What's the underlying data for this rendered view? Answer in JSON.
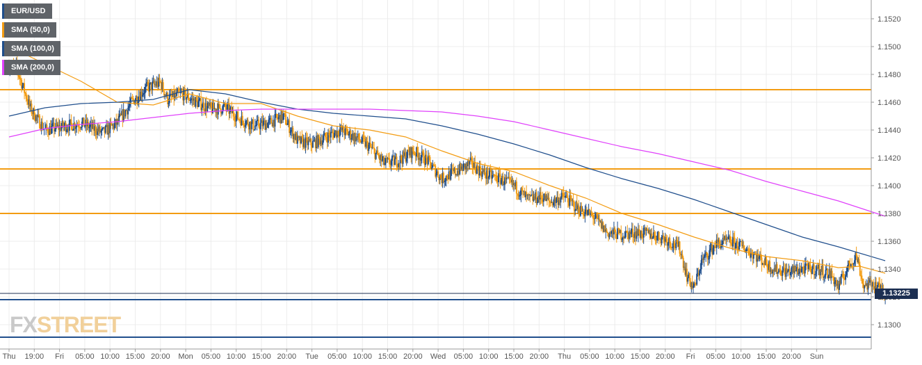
{
  "chart_data": {
    "type": "candlestick",
    "symbol": "EUR/USD",
    "ylim": [
      1.129,
      1.153
    ],
    "y_ticks": [
      "1.1300",
      "1.1320",
      "1.1340",
      "1.1360",
      "1.1380",
      "1.1400",
      "1.1420",
      "1.1440",
      "1.1460",
      "1.1480",
      "1.1500",
      "1.1520"
    ],
    "x_ticks": [
      "Thu",
      "19:00",
      "Fri",
      "05:00",
      "10:00",
      "15:00",
      "20:00",
      "Mon",
      "05:00",
      "10:00",
      "15:00",
      "20:00",
      "Tue",
      "05:00",
      "10:00",
      "15:00",
      "20:00",
      "Wed",
      "05:00",
      "10:00",
      "15:00",
      "20:00",
      "Thu",
      "05:00",
      "10:00",
      "15:00",
      "20:00",
      "Fri",
      "05:00",
      "10:00",
      "15:00",
      "20:00",
      "Sun"
    ],
    "last_price": "1.13225",
    "horizontal_levels": [
      {
        "value": 1.1469,
        "color": "#f39c12"
      },
      {
        "value": 1.1412,
        "color": "#f39c12"
      },
      {
        "value": 1.138,
        "color": "#f39c12"
      },
      {
        "value": 1.1318,
        "color": "#1f4e8c"
      },
      {
        "value": 1.1291,
        "color": "#1f4e8c"
      }
    ],
    "close_path": [
      [
        0,
        1.1486
      ],
      [
        2,
        1.1485
      ],
      [
        6,
        1.1455
      ],
      [
        10,
        1.144
      ],
      [
        16,
        1.1443
      ],
      [
        20,
        1.1445
      ],
      [
        26,
        1.1438
      ],
      [
        30,
        1.1445
      ],
      [
        34,
        1.146
      ],
      [
        38,
        1.147
      ],
      [
        42,
        1.1474
      ],
      [
        44,
        1.1462
      ],
      [
        48,
        1.1466
      ],
      [
        52,
        1.146
      ],
      [
        56,
        1.1455
      ],
      [
        60,
        1.1456
      ],
      [
        64,
        1.1448
      ],
      [
        68,
        1.1443
      ],
      [
        72,
        1.1445
      ],
      [
        76,
        1.145
      ],
      [
        80,
        1.1432
      ],
      [
        84,
        1.143
      ],
      [
        88,
        1.1435
      ],
      [
        92,
        1.144
      ],
      [
        96,
        1.1435
      ],
      [
        100,
        1.1428
      ],
      [
        104,
        1.1416
      ],
      [
        108,
        1.1418
      ],
      [
        112,
        1.1425
      ],
      [
        116,
        1.1418
      ],
      [
        120,
        1.1405
      ],
      [
        124,
        1.141
      ],
      [
        128,
        1.1416
      ],
      [
        132,
        1.1408
      ],
      [
        136,
        1.1405
      ],
      [
        140,
        1.14
      ],
      [
        144,
        1.139
      ],
      [
        148,
        1.1392
      ],
      [
        150,
        1.1388
      ],
      [
        154,
        1.1392
      ],
      [
        158,
        1.1383
      ],
      [
        162,
        1.1378
      ],
      [
        166,
        1.1366
      ],
      [
        170,
        1.1365
      ],
      [
        174,
        1.1366
      ],
      [
        178,
        1.1365
      ],
      [
        182,
        1.1362
      ],
      [
        186,
        1.1355
      ],
      [
        188,
        1.1335
      ],
      [
        190,
        1.1326
      ],
      [
        192,
        1.1345
      ],
      [
        196,
        1.1358
      ],
      [
        200,
        1.136
      ],
      [
        204,
        1.1355
      ],
      [
        208,
        1.1348
      ],
      [
        212,
        1.134
      ],
      [
        216,
        1.1338
      ],
      [
        220,
        1.134
      ],
      [
        224,
        1.134
      ],
      [
        228,
        1.1336
      ],
      [
        230,
        1.1327
      ],
      [
        233,
        1.1343
      ],
      [
        235,
        1.135
      ],
      [
        237,
        1.1328
      ],
      [
        240,
        1.133
      ],
      [
        243,
        1.1322
      ]
    ],
    "series": [
      {
        "name": "SMA (50,0)",
        "color": "#f39c12",
        "points": [
          [
            0,
            1.15
          ],
          [
            20,
            1.1475
          ],
          [
            30,
            1.146
          ],
          [
            40,
            1.1458
          ],
          [
            50,
            1.1466
          ],
          [
            60,
            1.1459
          ],
          [
            70,
            1.1459
          ],
          [
            80,
            1.145
          ],
          [
            90,
            1.1443
          ],
          [
            100,
            1.144
          ],
          [
            110,
            1.1435
          ],
          [
            120,
            1.1425
          ],
          [
            130,
            1.1416
          ],
          [
            140,
            1.141
          ],
          [
            150,
            1.14
          ],
          [
            160,
            1.1391
          ],
          [
            170,
            1.138
          ],
          [
            180,
            1.1372
          ],
          [
            190,
            1.1363
          ],
          [
            200,
            1.1355
          ],
          [
            210,
            1.1349
          ],
          [
            220,
            1.1346
          ],
          [
            230,
            1.1341
          ],
          [
            236,
            1.1342
          ],
          [
            243,
            1.1337
          ]
        ]
      },
      {
        "name": "SMA (100,0)",
        "color": "#1f4e8c",
        "points": [
          [
            0,
            1.145
          ],
          [
            10,
            1.1456
          ],
          [
            20,
            1.1459
          ],
          [
            30,
            1.146
          ],
          [
            40,
            1.1462
          ],
          [
            50,
            1.1469
          ],
          [
            60,
            1.1466
          ],
          [
            70,
            1.146
          ],
          [
            80,
            1.1455
          ],
          [
            90,
            1.1452
          ],
          [
            100,
            1.145
          ],
          [
            110,
            1.1448
          ],
          [
            120,
            1.1443
          ],
          [
            130,
            1.1437
          ],
          [
            140,
            1.143
          ],
          [
            150,
            1.1422
          ],
          [
            160,
            1.1413
          ],
          [
            170,
            1.1405
          ],
          [
            180,
            1.1398
          ],
          [
            190,
            1.139
          ],
          [
            200,
            1.1381
          ],
          [
            210,
            1.1372
          ],
          [
            220,
            1.1363
          ],
          [
            230,
            1.1356
          ],
          [
            243,
            1.1346
          ]
        ]
      },
      {
        "name": "SMA (200,0)",
        "color": "#e040fb",
        "points": [
          [
            0,
            1.1435
          ],
          [
            10,
            1.1441
          ],
          [
            20,
            1.1444
          ],
          [
            30,
            1.1446
          ],
          [
            40,
            1.1449
          ],
          [
            50,
            1.1452
          ],
          [
            60,
            1.1454
          ],
          [
            70,
            1.1455
          ],
          [
            80,
            1.1455
          ],
          [
            90,
            1.1455
          ],
          [
            100,
            1.1455
          ],
          [
            110,
            1.1454
          ],
          [
            120,
            1.1453
          ],
          [
            130,
            1.145
          ],
          [
            140,
            1.1446
          ],
          [
            150,
            1.144
          ],
          [
            160,
            1.1434
          ],
          [
            170,
            1.1428
          ],
          [
            180,
            1.1423
          ],
          [
            190,
            1.1417
          ],
          [
            200,
            1.1411
          ],
          [
            210,
            1.1403
          ],
          [
            220,
            1.1396
          ],
          [
            230,
            1.1389
          ],
          [
            243,
            1.1378
          ]
        ]
      }
    ],
    "candle_colors": {
      "up": "#1f4e8c",
      "down": "#f39c12"
    },
    "grid": true
  },
  "legend": [
    {
      "label": "EUR/USD",
      "color": "#1f4e8c"
    },
    {
      "label": "SMA (50,0)",
      "color": "#f39c12"
    },
    {
      "label": "SMA (100,0)",
      "color": "#1f4e8c"
    },
    {
      "label": "SMA (200,0)",
      "color": "#e040fb"
    }
  ],
  "logo": {
    "part1": "FX",
    "part2": "STREET"
  }
}
